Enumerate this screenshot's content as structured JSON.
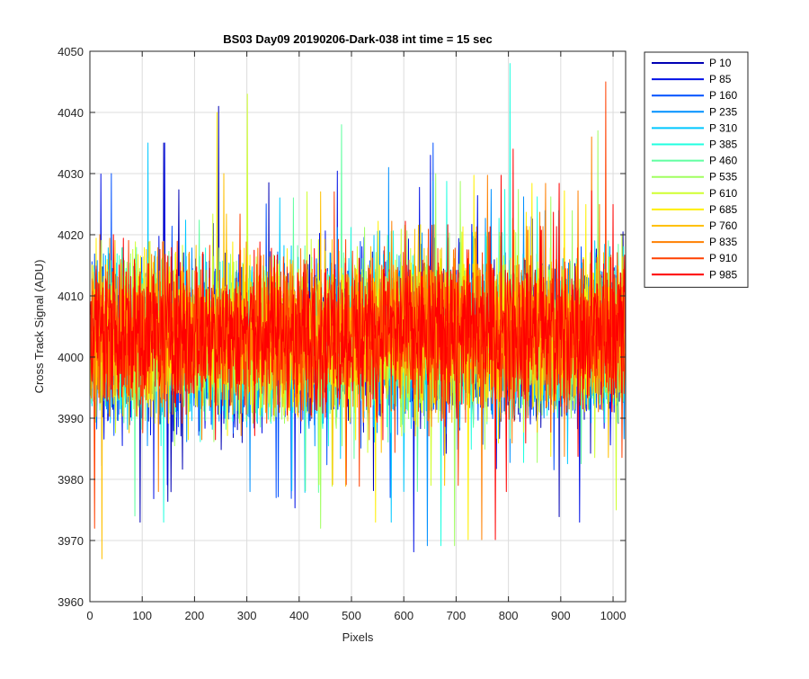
{
  "chart_data": {
    "type": "line",
    "title": "BS03 Day09 20190206-Dark-038 int time = 15 sec",
    "xlabel": "Pixels",
    "ylabel": "Cross Track Signal (ADU)",
    "xlim": [
      0,
      1024
    ],
    "ylim": [
      3960,
      4050
    ],
    "xticks": [
      0,
      100,
      200,
      300,
      400,
      500,
      600,
      700,
      800,
      900,
      1000
    ],
    "yticks": [
      3960,
      3970,
      3980,
      3990,
      4000,
      4010,
      4020,
      4030,
      4040,
      4050
    ],
    "grid": true,
    "legend_position": "outside-top-right",
    "series_points": 1024,
    "series": [
      {
        "name": "P 10",
        "color": "#0000b4",
        "mean": 4002,
        "spikes": [
          [
            245,
            4041
          ],
          [
            95,
            3973
          ],
          [
            140,
            4035
          ]
        ]
      },
      {
        "name": "P 85",
        "color": "#0010e6",
        "mean": 4002,
        "spikes": [
          [
            142,
            4035
          ],
          [
            650,
            4033
          ],
          [
            935,
            3973
          ]
        ]
      },
      {
        "name": "P 160",
        "color": "#0050ff",
        "mean": 4002,
        "spikes": [
          [
            40,
            4030
          ],
          [
            355,
            3977
          ],
          [
            655,
            4035
          ]
        ]
      },
      {
        "name": "P 235",
        "color": "#0090ff",
        "mean": 4003,
        "spikes": [
          [
            570,
            4031
          ],
          [
            305,
            3978
          ]
        ]
      },
      {
        "name": "P 310",
        "color": "#00c8ff",
        "mean": 4003,
        "spikes": [
          [
            110,
            4035
          ],
          [
            575,
            3973
          ]
        ]
      },
      {
        "name": "P 385",
        "color": "#20ffe0",
        "mean": 4003,
        "spikes": [
          [
            802,
            4048
          ],
          [
            140,
            3973
          ]
        ]
      },
      {
        "name": "P 460",
        "color": "#60ffa0",
        "mean": 4003,
        "spikes": [
          [
            480,
            4038
          ],
          [
            85,
            3974
          ]
        ]
      },
      {
        "name": "P 535",
        "color": "#a0ff60",
        "mean": 4003,
        "spikes": [
          [
            970,
            4037
          ],
          [
            440,
            3972
          ],
          [
            660,
            4030
          ]
        ]
      },
      {
        "name": "P 610",
        "color": "#d0ff30",
        "mean": 4004,
        "spikes": [
          [
            300,
            4043
          ],
          [
            1005,
            3975
          ]
        ]
      },
      {
        "name": "P 685",
        "color": "#ffef00",
        "mean": 4004,
        "spikes": [
          [
            242,
            4040
          ],
          [
            545,
            3973
          ]
        ]
      },
      {
        "name": "P 760",
        "color": "#ffc000",
        "mean": 4004,
        "spikes": [
          [
            22,
            3967
          ],
          [
            255,
            4030
          ]
        ]
      },
      {
        "name": "P 835",
        "color": "#ff8000",
        "mean": 4004,
        "spikes": [
          [
            958,
            4036
          ],
          [
            130,
            3978
          ]
        ]
      },
      {
        "name": "P 910",
        "color": "#ff4000",
        "mean": 4004,
        "spikes": [
          [
            985,
            4045
          ],
          [
            8,
            3972
          ]
        ]
      },
      {
        "name": "P 985",
        "color": "#ff0000",
        "mean": 4004,
        "spikes": [
          [
            808,
            4034
          ],
          [
            795,
            3978
          ]
        ]
      }
    ]
  }
}
